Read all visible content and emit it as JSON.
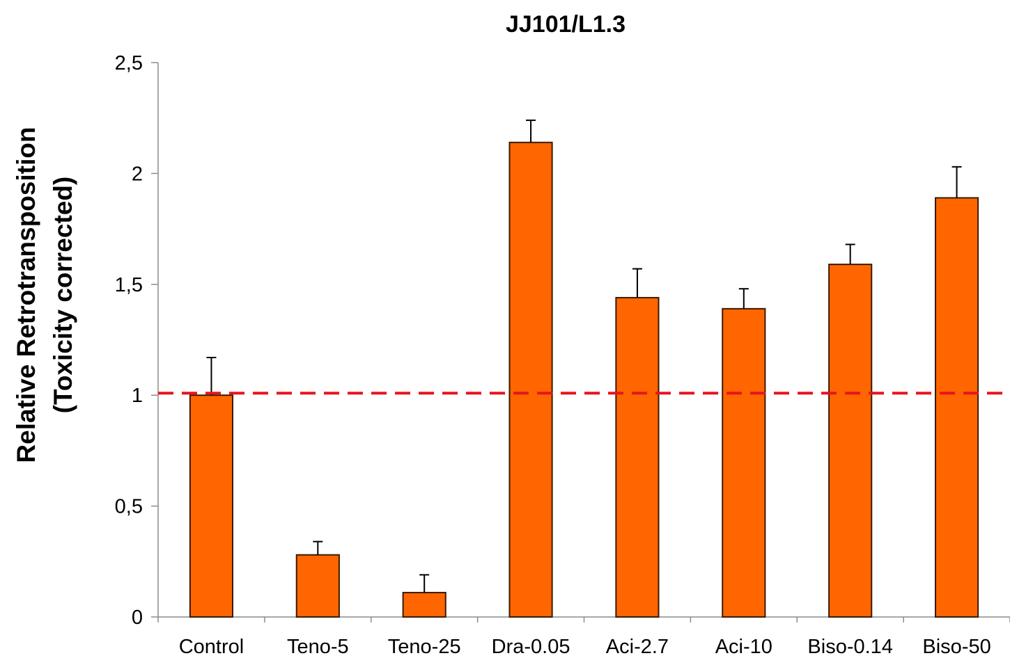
{
  "chart_data": {
    "type": "bar",
    "title": "JJ101/L1.3",
    "xlabel": "",
    "ylabel_lines": [
      "Relative Retrotransposition",
      "(Toxicity corrected)"
    ],
    "categories": [
      "Control",
      "Teno-5",
      "Teno-25",
      "Dra-0.05",
      "Aci-2.7",
      "Aci-10",
      "Biso-0.14",
      "Biso-50"
    ],
    "values": [
      1.0,
      0.28,
      0.11,
      2.14,
      1.44,
      1.39,
      1.59,
      1.89
    ],
    "errors": [
      0.17,
      0.06,
      0.08,
      0.1,
      0.13,
      0.09,
      0.09,
      0.14
    ],
    "ylim": [
      0,
      2.5
    ],
    "yticks": [
      0,
      0.5,
      1,
      1.5,
      2,
      2.5
    ],
    "ytick_labels": [
      "0",
      "0,5",
      "1",
      "1,5",
      "2",
      "2,5"
    ],
    "reference_line": 1.0,
    "bar_color": "#FF6600",
    "bar_edge_color": "#3a1a00",
    "reference_line_color": "#E8141E",
    "grid": false,
    "legend": false
  }
}
